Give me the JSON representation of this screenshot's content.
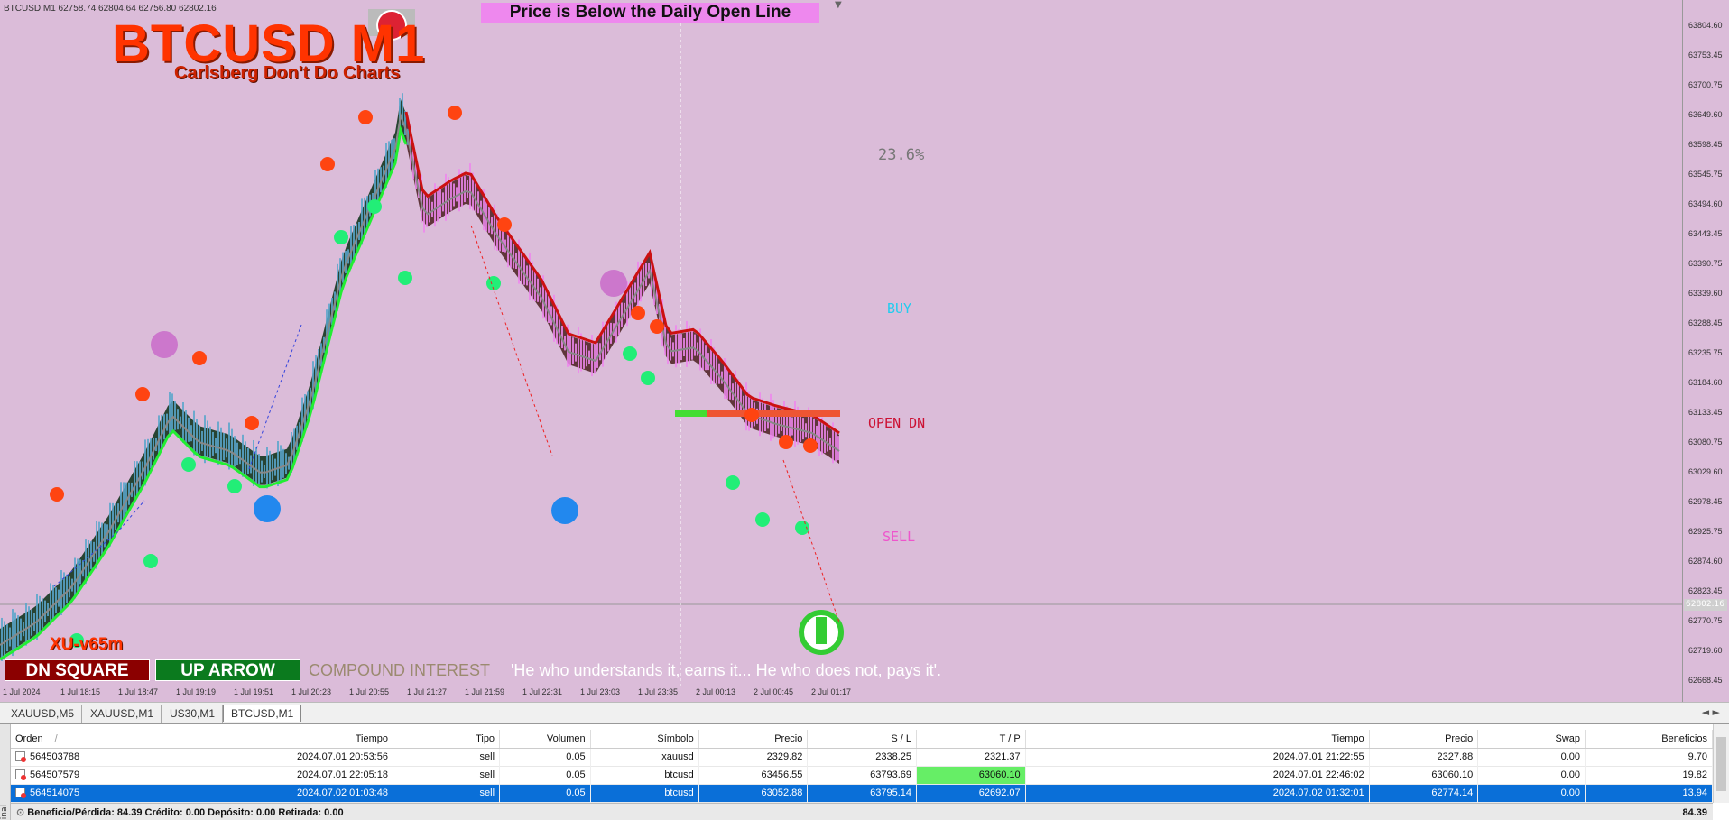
{
  "chart": {
    "symbol_info": "BTCUSD,M1  62758.74 62804.64 62756.80 62802.16",
    "title": "BTCUSD M1",
    "subtitle": "Carlsberg Don't Do Charts",
    "banner": "Price is Below the Daily Open Line",
    "fib_label": "23.6%",
    "buy_label": "BUY",
    "open_label": "OPEN DN",
    "sell_label": "SELL",
    "version": "XU-v65m",
    "dn_square": "DN SQUARE",
    "up_arrow": "UP ARROW",
    "compound": "COMPOUND INTEREST",
    "quote": "'He who understands it, earns it... He who does not, pays it'.",
    "current_price": "62802.16",
    "colors": {
      "background": "#dbbcd9",
      "bull_band": "#1f3d2a",
      "bear_band": "#4a1f1f",
      "up_line": "#22ee33",
      "down_line": "#cc1111",
      "dot_red": "#ff4411",
      "dot_green": "#22ee77",
      "dot_blue": "#2288ee",
      "dot_violet": "#cc77cc"
    }
  },
  "price_axis": [
    "63804.60",
    "63753.45",
    "63700.75",
    "63649.60",
    "63598.45",
    "63545.75",
    "63494.60",
    "63443.45",
    "63390.75",
    "63339.60",
    "63288.45",
    "63235.75",
    "63184.60",
    "63133.45",
    "63080.75",
    "63029.60",
    "62978.45",
    "62925.75",
    "62874.60",
    "62823.45",
    "62770.75",
    "62719.60",
    "62668.45"
  ],
  "time_axis": [
    "1 Jul 2024",
    "1 Jul 18:15",
    "1 Jul 18:47",
    "1 Jul 19:19",
    "1 Jul 19:51",
    "1 Jul 20:23",
    "1 Jul 20:55",
    "1 Jul 21:27",
    "1 Jul 21:59",
    "1 Jul 22:31",
    "1 Jul 23:03",
    "1 Jul 23:35",
    "2 Jul 00:13",
    "2 Jul 00:45",
    "2 Jul 01:17"
  ],
  "tabs": [
    "XAUUSD,M5",
    "XAUUSD,M1",
    "US30,M1",
    "BTCUSD,M1"
  ],
  "terminal": {
    "columns": [
      "Orden",
      "Tiempo",
      "Tipo",
      "Volumen",
      "Símbolo",
      "Precio",
      "S / L",
      "T / P",
      "Tiempo",
      "Precio",
      "Swap",
      "Beneficios"
    ],
    "sort_mark": "/",
    "rows": [
      [
        "564503788",
        "2024.07.01 20:53:56",
        "sell",
        "0.05",
        "xauusd",
        "2329.82",
        "2338.25",
        "2321.37",
        "2024.07.01 21:22:55",
        "2327.88",
        "0.00",
        "9.70"
      ],
      [
        "564507579",
        "2024.07.01 22:05:18",
        "sell",
        "0.05",
        "btcusd",
        "63456.55",
        "63793.69",
        "63060.10",
        "2024.07.01 22:46:02",
        "63060.10",
        "0.00",
        "19.82"
      ],
      [
        "564514075",
        "2024.07.02 01:03:48",
        "sell",
        "0.05",
        "btcusd",
        "63052.88",
        "63795.14",
        "62692.07",
        "2024.07.02 01:32:01",
        "62774.14",
        "0.00",
        "13.94"
      ]
    ],
    "summary": "Beneficio/Pérdida: 84.39  Crédito: 0.00  Depósito: 0.00  Retirada: 0.00",
    "total": "84.39",
    "side_label": "inal"
  }
}
